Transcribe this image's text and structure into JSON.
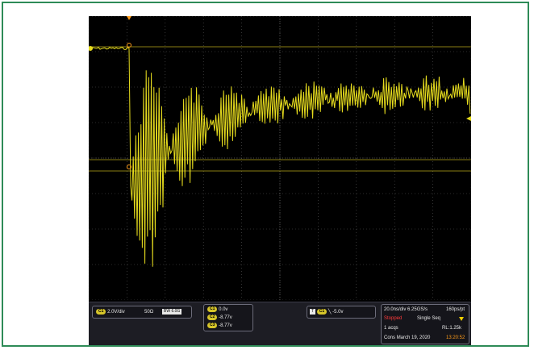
{
  "colors": {
    "trace": "#e6dc1e",
    "grid": "#5a5a5a",
    "frame": "#2e8b57",
    "badge": "#d6c52a",
    "stopped": "#ff3a3a",
    "time": "#ff9c1a"
  },
  "channel_box": {
    "badge": "C1",
    "scale": "2.0V/div",
    "impedance": "50Ω",
    "bandwidth": "BW",
    "bandwidth_value": "6.0G"
  },
  "measurements": {
    "rows": [
      {
        "badge": "C1",
        "value": "0.0v"
      },
      {
        "badge": "C2",
        "value": "-8.77v"
      },
      {
        "badge": "C3",
        "value": "-8.77v"
      }
    ]
  },
  "trigger": {
    "badge": "C1",
    "level": "-5.0v"
  },
  "acquisition": {
    "timebase": "20.0ns/div",
    "sample_rate": "6.25GS/s",
    "resolution": "160ps/pt",
    "state": "Stopped",
    "mode": "Single Seq",
    "acqs": "1 acqs",
    "record_length": "RL:1.25k",
    "cons": "Cons",
    "date": "March 19, 2020",
    "time": "13:20:52"
  }
}
